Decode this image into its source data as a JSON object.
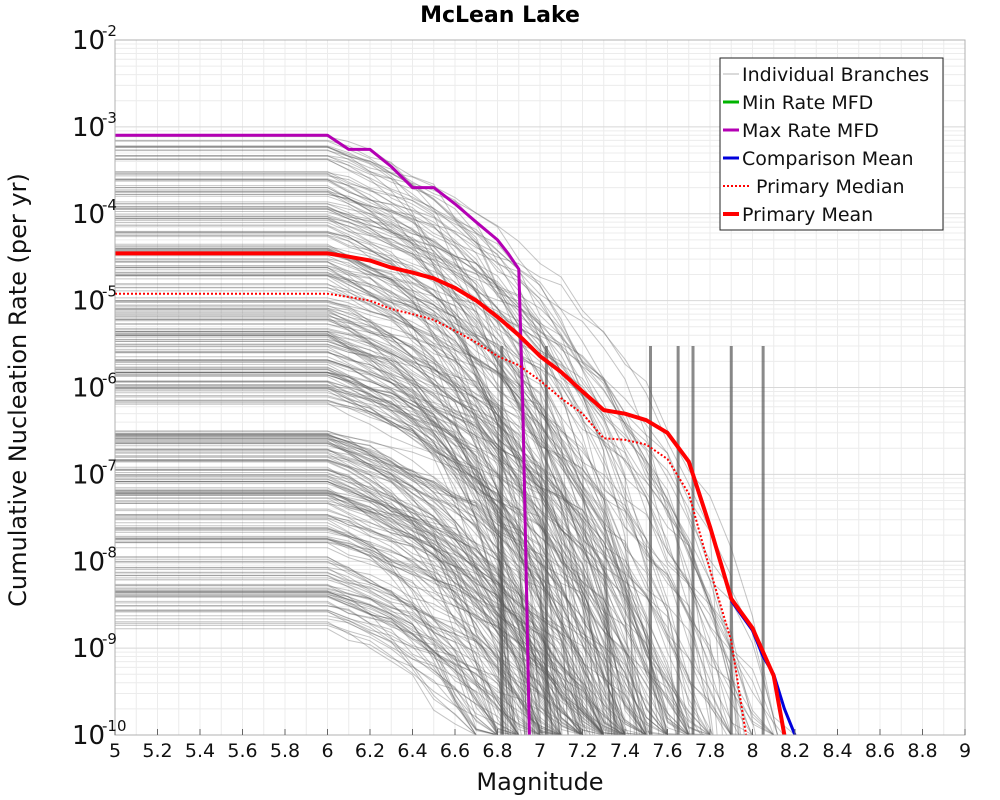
{
  "chart_data": {
    "type": "line",
    "title": "McLean Lake",
    "xlabel": "Magnitude",
    "ylabel": "Cumulative Nucleation Rate (per yr)",
    "xlim": [
      5,
      9
    ],
    "ylim": [
      1e-10,
      0.01
    ],
    "yscale": "log",
    "grid": true,
    "legend_position": "top-right",
    "x_ticks": [
      "5",
      "5.2",
      "5.4",
      "5.6",
      "5.8",
      "6",
      "6.2",
      "6.4",
      "6.6",
      "6.8",
      "7",
      "7.2",
      "7.4",
      "7.6",
      "7.8",
      "8",
      "8.2",
      "8.4",
      "8.6",
      "8.8",
      "9"
    ],
    "y_ticks": [
      {
        "base": "10",
        "exp": "-10"
      },
      {
        "base": "10",
        "exp": "-9"
      },
      {
        "base": "10",
        "exp": "-8"
      },
      {
        "base": "10",
        "exp": "-7"
      },
      {
        "base": "10",
        "exp": "-6"
      },
      {
        "base": "10",
        "exp": "-5"
      },
      {
        "base": "10",
        "exp": "-4"
      },
      {
        "base": "10",
        "exp": "-3"
      },
      {
        "base": "10",
        "exp": "-2"
      }
    ],
    "colors": {
      "individual": "#595959",
      "min_rate": "#00b400",
      "max_rate": "#b400b4",
      "comparison_mean": "#0000dc",
      "primary_median": "#ff0000",
      "primary_mean": "#ff0000"
    },
    "series": [
      {
        "name": "Individual Branches",
        "note_style": "many thin gray lines",
        "values": []
      },
      {
        "name": "Min Rate MFD",
        "x": [],
        "y": []
      },
      {
        "name": "Max Rate MFD",
        "x": [
          5.0,
          6.0,
          6.1,
          6.2,
          6.3,
          6.4,
          6.5,
          6.6,
          6.7,
          6.8,
          6.85,
          6.9,
          6.92,
          6.95
        ],
        "y": [
          0.0008,
          0.0008,
          0.00055,
          0.00055,
          0.00035,
          0.0002,
          0.0002,
          0.00013,
          8e-05,
          5e-05,
          3.5e-05,
          2.3e-05,
          5e-07,
          1e-10
        ]
      },
      {
        "name": "Comparison Mean",
        "x": [
          7.9,
          8.0,
          8.05,
          8.1,
          8.15,
          8.2
        ],
        "y": [
          3.5e-09,
          1.6e-09,
          8e-10,
          5e-10,
          2e-10,
          1e-10
        ]
      },
      {
        "name": "Primary Median",
        "x": [
          5.0,
          6.0,
          6.1,
          6.2,
          6.3,
          6.4,
          6.5,
          6.6,
          6.7,
          6.8,
          6.9,
          7.0,
          7.1,
          7.2,
          7.3,
          7.4,
          7.5,
          7.6,
          7.7,
          7.8,
          7.9,
          7.97
        ],
        "y": [
          1.2e-05,
          1.2e-05,
          1.1e-05,
          1e-05,
          8e-06,
          7e-06,
          6e-06,
          4.5e-06,
          3.3e-06,
          2.3e-06,
          1.8e-06,
          1.2e-06,
          7.5e-07,
          5e-07,
          2.6e-07,
          2.5e-07,
          2.2e-07,
          1.5e-07,
          6e-08,
          8e-09,
          1.2e-09,
          1e-10
        ]
      },
      {
        "name": "Primary Mean",
        "x": [
          5.0,
          6.0,
          6.1,
          6.2,
          6.3,
          6.4,
          6.5,
          6.6,
          6.7,
          6.8,
          6.9,
          7.0,
          7.1,
          7.2,
          7.3,
          7.4,
          7.5,
          7.6,
          7.7,
          7.8,
          7.9,
          8.0,
          8.05,
          8.1,
          8.15
        ],
        "y": [
          3.5e-05,
          3.5e-05,
          3.2e-05,
          2.9e-05,
          2.4e-05,
          2.1e-05,
          1.8e-05,
          1.4e-05,
          1e-05,
          6.5e-06,
          4e-06,
          2.3e-06,
          1.5e-06,
          9e-07,
          5.5e-07,
          5e-07,
          4.2e-07,
          3e-07,
          1.4e-07,
          2.5e-08,
          3.7e-09,
          1.7e-09,
          9e-10,
          4.8e-10,
          1e-10
        ]
      }
    ]
  }
}
